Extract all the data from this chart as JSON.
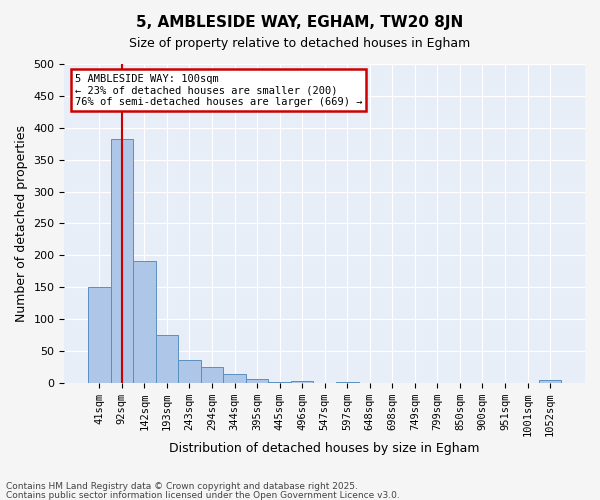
{
  "title1": "5, AMBLESIDE WAY, EGHAM, TW20 8JN",
  "title2": "Size of property relative to detached houses in Egham",
  "xlabel": "Distribution of detached houses by size in Egham",
  "ylabel": "Number of detached properties",
  "categories": [
    "41sqm",
    "92sqm",
    "142sqm",
    "193sqm",
    "243sqm",
    "294sqm",
    "344sqm",
    "395sqm",
    "445sqm",
    "496sqm",
    "547sqm",
    "597sqm",
    "648sqm",
    "698sqm",
    "749sqm",
    "799sqm",
    "850sqm",
    "900sqm",
    "951sqm",
    "1001sqm",
    "1052sqm"
  ],
  "values": [
    150,
    383,
    191,
    75,
    36,
    25,
    14,
    6,
    1,
    3,
    0,
    1,
    0,
    0,
    0,
    0,
    0,
    0,
    0,
    0,
    4
  ],
  "bar_color": "#aec6e8",
  "bar_edge_color": "#5a8fc0",
  "vline_x": 1,
  "vline_color": "#cc0000",
  "annotation_line1": "5 AMBLESIDE WAY: 100sqm",
  "annotation_line2": "← 23% of detached houses are smaller (200)",
  "annotation_line3": "76% of semi-detached houses are larger (669) →",
  "annotation_box_color": "#cc0000",
  "annotation_fill": "#ffffff",
  "ylim": [
    0,
    500
  ],
  "yticks": [
    0,
    50,
    100,
    150,
    200,
    250,
    300,
    350,
    400,
    450,
    500
  ],
  "bg_color": "#e8eef7",
  "grid_color": "#ffffff",
  "footer1": "Contains HM Land Registry data © Crown copyright and database right 2025.",
  "footer2": "Contains public sector information licensed under the Open Government Licence v3.0.",
  "fig_bg_color": "#f5f5f5"
}
